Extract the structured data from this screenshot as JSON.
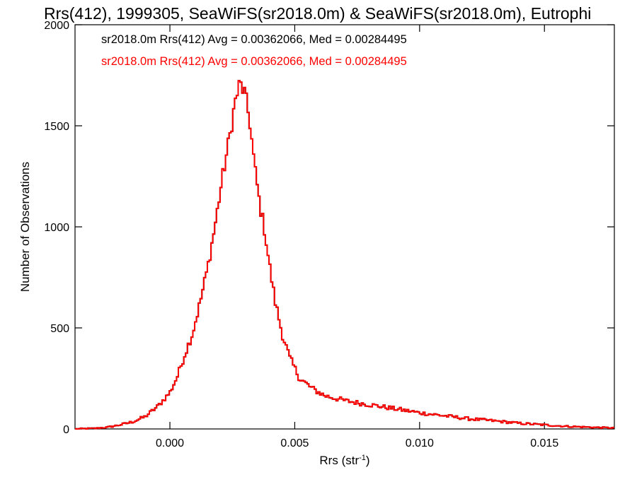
{
  "chart_data": {
    "type": "histogram",
    "title": "Rrs(412), 1999305, SeaWiFS(sr2018.0m) & SeaWiFS(sr2018.0m), Eutrophi",
    "xlabel": "Rrs (str",
    "xlabel_sup": "-1",
    "xlabel_close": ")",
    "ylabel": "Number of Observations",
    "xlim": [
      -0.0038,
      0.0178
    ],
    "ylim": [
      0,
      2000
    ],
    "xticks": [
      0.0,
      0.005,
      0.01,
      0.015
    ],
    "xtick_labels": [
      "0.000",
      "0.005",
      "0.010",
      "0.015"
    ],
    "yticks": [
      0,
      500,
      1000,
      1500,
      2000
    ],
    "ytick_labels": [
      "0",
      "500",
      "1000",
      "1500",
      "2000"
    ],
    "grid": false,
    "legend_position": "top-left",
    "colors": {
      "series_1": "#000000",
      "series_2": "#ff0000"
    },
    "legend": [
      "sr2018.0m Rrs(412) Avg = 0.00362066, Med = 0.00284495",
      "sr2018.0m Rrs(412) Avg = 0.00362066, Med = 0.00284495"
    ],
    "curve_points": [
      [
        -0.0038,
        0
      ],
      [
        -0.003,
        3
      ],
      [
        -0.0025,
        8
      ],
      [
        -0.002,
        20
      ],
      [
        -0.0015,
        35
      ],
      [
        -0.001,
        60
      ],
      [
        -0.0005,
        110
      ],
      [
        0.0,
        180
      ],
      [
        0.0003,
        260
      ],
      [
        0.0006,
        370
      ],
      [
        0.0009,
        470
      ],
      [
        0.0012,
        620
      ],
      [
        0.0015,
        790
      ],
      [
        0.0018,
        1000
      ],
      [
        0.0021,
        1240
      ],
      [
        0.0024,
        1450
      ],
      [
        0.0026,
        1610
      ],
      [
        0.0028,
        1710
      ],
      [
        0.003,
        1660
      ],
      [
        0.0032,
        1520
      ],
      [
        0.0034,
        1290
      ],
      [
        0.0036,
        1110
      ],
      [
        0.0038,
        980
      ],
      [
        0.004,
        800
      ],
      [
        0.0042,
        640
      ],
      [
        0.0045,
        470
      ],
      [
        0.0048,
        350
      ],
      [
        0.0052,
        250
      ],
      [
        0.0057,
        200
      ],
      [
        0.0062,
        165
      ],
      [
        0.007,
        140
      ],
      [
        0.008,
        120
      ],
      [
        0.009,
        100
      ],
      [
        0.01,
        80
      ],
      [
        0.011,
        65
      ],
      [
        0.012,
        50
      ],
      [
        0.013,
        40
      ],
      [
        0.014,
        28
      ],
      [
        0.015,
        20
      ],
      [
        0.016,
        12
      ],
      [
        0.017,
        8
      ],
      [
        0.0178,
        5
      ]
    ],
    "bin_width": 7.26e-05
  }
}
